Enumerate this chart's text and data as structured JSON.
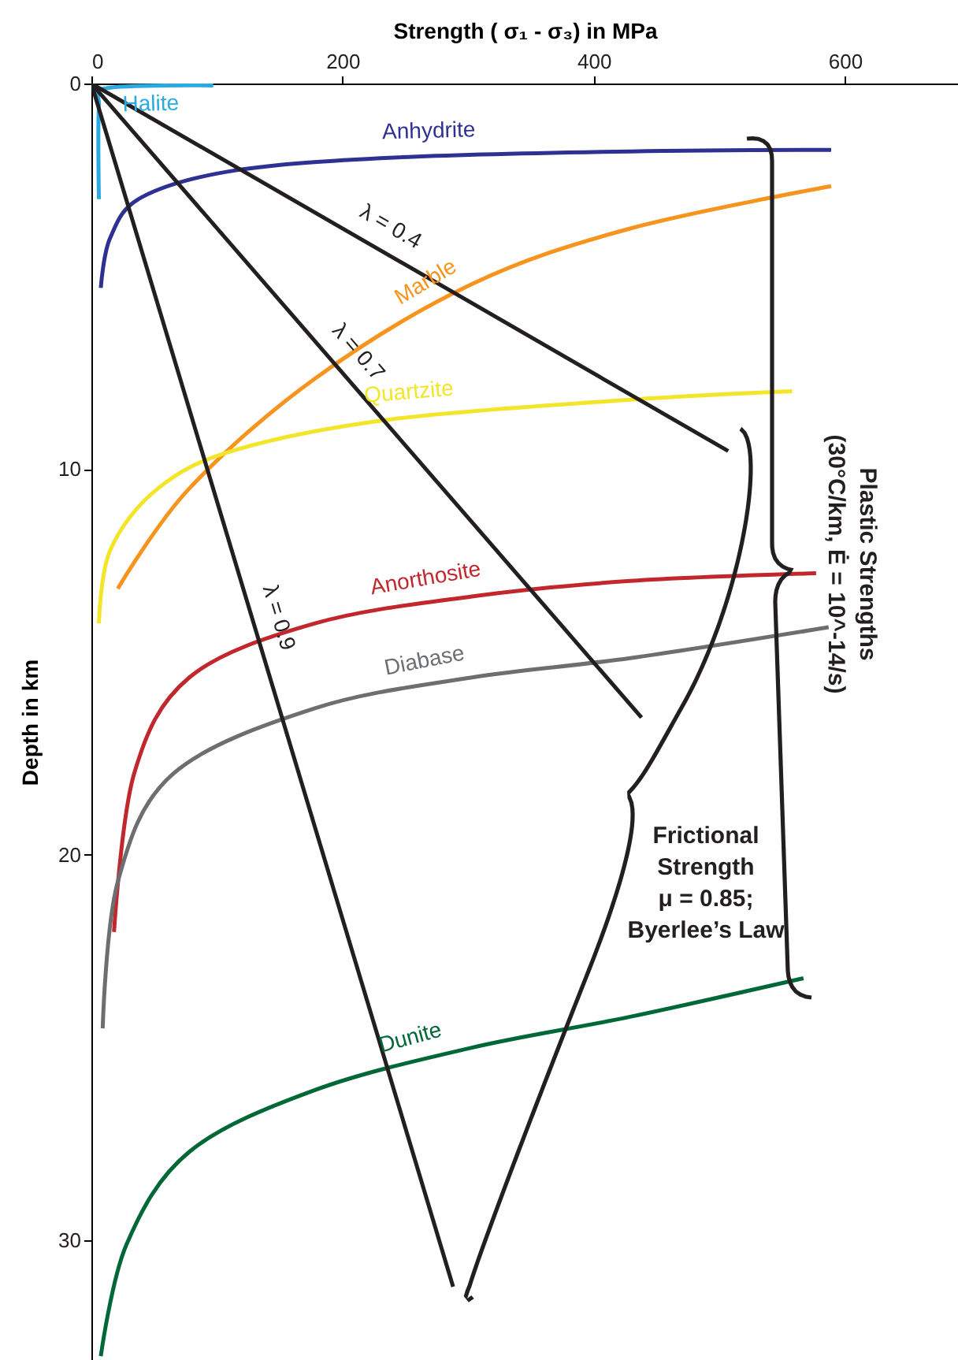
{
  "chart_data": {
    "type": "line",
    "xlabel": "Strength ( σ₁ - σ₃) in MPa",
    "ylabel": "Depth in km",
    "xlim": [
      0,
      690
    ],
    "ylim": [
      33.1,
      0
    ],
    "xticks": [
      0,
      200,
      400,
      600
    ],
    "yticks": [
      0,
      10,
      20,
      30
    ],
    "series": [
      {
        "name": "Halite",
        "color": "#29abe2",
        "x": [
          97,
          12,
          6,
          6
        ],
        "values": [
          0.05,
          0.12,
          0.6,
          3.0
        ]
      },
      {
        "name": "Anhydrite",
        "color": "#2e3192",
        "x": [
          7.5,
          15,
          40,
          115,
          241,
          429,
          589
        ],
        "values": [
          5.3,
          4.0,
          2.95,
          2.25,
          1.92,
          1.76,
          1.72
        ]
      },
      {
        "name": "Marble",
        "color": "#f7941d",
        "x": [
          21,
          78,
          178,
          303,
          429,
          589
        ],
        "values": [
          13.1,
          10.5,
          7.65,
          5.2,
          3.76,
          2.66
        ]
      },
      {
        "name": "Quartzite",
        "color": "#f2e52a",
        "x": [
          6,
          15,
          53,
          115,
          241,
          429,
          558
        ],
        "values": [
          14.0,
          12.1,
          10.5,
          9.5,
          8.7,
          8.2,
          7.98
        ]
      },
      {
        "name": "Anorthosite",
        "color": "#c1272d",
        "x": [
          18,
          34,
          78,
          178,
          303,
          429,
          577
        ],
        "values": [
          22.0,
          17.9,
          15.4,
          14.0,
          13.3,
          12.9,
          12.7
        ]
      },
      {
        "name": "Diabase",
        "color": "#6d6e71",
        "x": [
          9,
          21,
          65,
          178,
          303,
          429,
          587
        ],
        "values": [
          24.5,
          20.7,
          17.9,
          16.2,
          15.4,
          14.9,
          14.1
        ]
      },
      {
        "name": "Dunite",
        "color": "#006837",
        "x": [
          7.5,
          28,
          78,
          178,
          303,
          429,
          567
        ],
        "values": [
          33.0,
          30.1,
          27.7,
          26.1,
          25.0,
          24.2,
          23.2
        ]
      },
      {
        "name": "λ = 0.4",
        "color": "#231f20",
        "x": [
          0,
          507
        ],
        "values": [
          0,
          9.53
        ]
      },
      {
        "name": "λ = 0.7",
        "color": "#231f20",
        "x": [
          0,
          438
        ],
        "values": [
          0,
          16.44
        ]
      },
      {
        "name": "λ = 0.9",
        "color": "#231f20",
        "x": [
          0,
          288
        ],
        "values": [
          0,
          31.2
        ]
      }
    ],
    "annotations": [
      "Frictional\nStrength\nμ = 0.85;\nByerlee’s Law",
      "Plastic Strengths\n(30°C/km, Ė = 10^-14/s)"
    ]
  }
}
